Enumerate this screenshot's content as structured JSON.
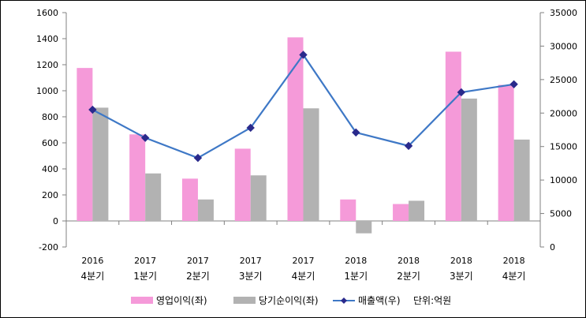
{
  "chart_data": {
    "type": "bar",
    "title": "",
    "xlabel": "",
    "ylabel": "",
    "categories": [
      {
        "year": "2016",
        "quarter": "4분기"
      },
      {
        "year": "2017",
        "quarter": "1분기"
      },
      {
        "year": "2017",
        "quarter": "2분기"
      },
      {
        "year": "2017",
        "quarter": "3분기"
      },
      {
        "year": "2017",
        "quarter": "4분기"
      },
      {
        "year": "2018",
        "quarter": "1분기"
      },
      {
        "year": "2018",
        "quarter": "2분기"
      },
      {
        "year": "2018",
        "quarter": "3분기"
      },
      {
        "year": "2018",
        "quarter": "4분기"
      }
    ],
    "y_left": {
      "min": -200,
      "max": 1600,
      "ticks": [
        -200,
        0,
        200,
        400,
        600,
        800,
        1000,
        1200,
        1400,
        1600
      ]
    },
    "y_right": {
      "min": 0,
      "max": 35000,
      "ticks": [
        0,
        5000,
        10000,
        15000,
        20000,
        25000,
        30000,
        35000
      ]
    },
    "series": [
      {
        "name": "영업이익(좌)",
        "type": "bar",
        "axis": "left",
        "color": "#f59ad9",
        "values": [
          1175,
          665,
          325,
          555,
          1410,
          165,
          130,
          1300,
          1045
        ]
      },
      {
        "name": "당기순이익(좌)",
        "type": "bar",
        "axis": "left",
        "color": "#b2b2b2",
        "values": [
          870,
          365,
          165,
          350,
          865,
          -95,
          155,
          940,
          625
        ]
      },
      {
        "name": "매출액(우)",
        "type": "line",
        "axis": "right",
        "color": "#3e78c6",
        "marker_color": "#2a2a8c",
        "values": [
          20500,
          16300,
          13300,
          17800,
          28700,
          17100,
          15100,
          23100,
          24300
        ]
      }
    ],
    "legend_position": "bottom",
    "unit_note": "단위:억원",
    "grid": false
  }
}
